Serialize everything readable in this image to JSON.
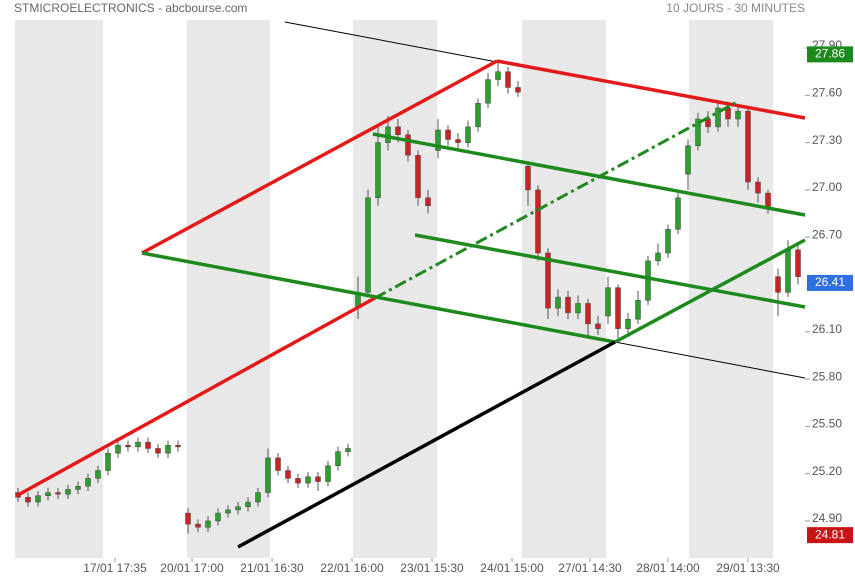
{
  "chart_data": {
    "type": "candlestick",
    "title": "STMICROELECTRONICS - abcbourse.com",
    "subtitle": "10 JOURS - 30 MINUTES",
    "up_color": "#2ca02c",
    "down_color": "#cc2222",
    "x": [
      0,
      1,
      2,
      3,
      4,
      5,
      6,
      7,
      8,
      9,
      10,
      11,
      12,
      13,
      14,
      15,
      16,
      17,
      18,
      19,
      20,
      21,
      22,
      23,
      24,
      25,
      26,
      27,
      28,
      29,
      30,
      31,
      32,
      33,
      34,
      35,
      36,
      37,
      38,
      39,
      40,
      41,
      42,
      43,
      44,
      45,
      46,
      47,
      48,
      49,
      50,
      51,
      52,
      53,
      54,
      55,
      56,
      57,
      58,
      59,
      60,
      61,
      62,
      63,
      64,
      65,
      66,
      67,
      68,
      69,
      70,
      71,
      72,
      73,
      74,
      75,
      76,
      77,
      78
    ],
    "ohlc": [
      [
        25.08,
        25.11,
        25.02,
        25.05
      ],
      [
        25.05,
        25.08,
        24.99,
        25.02
      ],
      [
        25.02,
        25.09,
        24.99,
        25.06
      ],
      [
        25.06,
        25.11,
        25.03,
        25.08
      ],
      [
        25.08,
        25.11,
        25.04,
        25.07
      ],
      [
        25.07,
        25.13,
        25.04,
        25.1
      ],
      [
        25.1,
        25.15,
        25.07,
        25.12
      ],
      [
        25.12,
        25.2,
        25.09,
        25.17
      ],
      [
        25.17,
        25.25,
        25.14,
        25.22
      ],
      [
        25.22,
        25.36,
        25.19,
        25.33
      ],
      [
        25.33,
        25.41,
        25.3,
        25.38
      ],
      [
        25.38,
        25.41,
        25.34,
        25.37
      ],
      [
        25.37,
        25.43,
        25.34,
        25.4
      ],
      [
        25.4,
        25.43,
        25.33,
        25.36
      ],
      [
        25.36,
        25.39,
        25.3,
        25.33
      ],
      [
        25.33,
        25.41,
        25.3,
        25.38
      ],
      [
        25.38,
        25.41,
        25.34,
        25.37
      ],
      [
        24.95,
        24.98,
        24.82,
        24.88
      ],
      [
        24.88,
        24.91,
        24.83,
        24.86
      ],
      [
        24.86,
        24.93,
        24.83,
        24.9
      ],
      [
        24.9,
        24.98,
        24.87,
        24.95
      ],
      [
        24.95,
        25.0,
        24.92,
        24.97
      ],
      [
        24.97,
        25.02,
        24.94,
        24.99
      ],
      [
        24.99,
        25.05,
        24.96,
        25.02
      ],
      [
        25.02,
        25.11,
        24.99,
        25.08
      ],
      [
        25.08,
        25.36,
        25.05,
        25.3
      ],
      [
        25.3,
        25.33,
        25.19,
        25.22
      ],
      [
        25.22,
        25.25,
        25.14,
        25.17
      ],
      [
        25.17,
        25.2,
        25.11,
        25.14
      ],
      [
        25.14,
        25.21,
        25.11,
        25.18
      ],
      [
        25.18,
        25.21,
        25.09,
        25.15
      ],
      [
        25.15,
        25.28,
        25.12,
        25.25
      ],
      [
        25.25,
        25.37,
        25.22,
        25.34
      ],
      [
        25.34,
        25.39,
        25.31,
        25.36
      ],
      [
        26.25,
        26.45,
        26.18,
        26.35
      ],
      [
        26.35,
        27.0,
        26.32,
        26.95
      ],
      [
        26.95,
        27.4,
        26.9,
        27.3
      ],
      [
        27.3,
        27.47,
        27.25,
        27.4
      ],
      [
        27.4,
        27.45,
        27.3,
        27.35
      ],
      [
        27.35,
        27.38,
        27.18,
        27.22
      ],
      [
        27.22,
        27.25,
        26.9,
        26.95
      ],
      [
        26.95,
        27.0,
        26.85,
        26.9
      ],
      [
        27.25,
        27.45,
        27.2,
        27.38
      ],
      [
        27.38,
        27.41,
        27.28,
        27.32
      ],
      [
        27.32,
        27.36,
        27.26,
        27.3
      ],
      [
        27.3,
        27.44,
        27.27,
        27.4
      ],
      [
        27.4,
        27.58,
        27.37,
        27.55
      ],
      [
        27.55,
        27.74,
        27.52,
        27.7
      ],
      [
        27.7,
        27.82,
        27.66,
        27.75
      ],
      [
        27.75,
        27.78,
        27.61,
        27.65
      ],
      [
        27.65,
        27.69,
        27.59,
        27.62
      ],
      [
        27.15,
        27.18,
        26.9,
        27.0
      ],
      [
        27.0,
        27.03,
        26.55,
        26.6
      ],
      [
        26.6,
        26.63,
        26.18,
        26.25
      ],
      [
        26.25,
        26.37,
        26.2,
        26.32
      ],
      [
        26.32,
        26.36,
        26.18,
        26.22
      ],
      [
        26.22,
        26.33,
        26.18,
        26.28
      ],
      [
        26.28,
        26.31,
        26.06,
        26.15
      ],
      [
        26.15,
        26.2,
        26.08,
        26.12
      ],
      [
        26.2,
        26.45,
        26.15,
        26.38
      ],
      [
        26.38,
        26.4,
        26.06,
        26.12
      ],
      [
        26.12,
        26.22,
        26.08,
        26.18
      ],
      [
        26.18,
        26.36,
        26.15,
        26.3
      ],
      [
        26.3,
        26.58,
        26.27,
        26.55
      ],
      [
        26.55,
        26.66,
        26.52,
        26.6
      ],
      [
        26.6,
        26.78,
        26.57,
        26.75
      ],
      [
        26.75,
        26.98,
        26.72,
        26.95
      ],
      [
        27.1,
        27.32,
        27.0,
        27.28
      ],
      [
        27.28,
        27.49,
        27.25,
        27.45
      ],
      [
        27.45,
        27.5,
        27.36,
        27.4
      ],
      [
        27.4,
        27.56,
        27.37,
        27.52
      ],
      [
        27.52,
        27.56,
        27.4,
        27.45
      ],
      [
        27.45,
        27.54,
        27.4,
        27.5
      ],
      [
        27.5,
        27.53,
        27.0,
        27.05
      ],
      [
        27.05,
        27.08,
        26.92,
        26.98
      ],
      [
        26.98,
        27.0,
        26.85,
        26.88
      ],
      [
        26.45,
        26.5,
        26.2,
        26.35
      ],
      [
        26.35,
        26.68,
        26.32,
        26.62
      ],
      [
        26.62,
        26.65,
        26.4,
        26.45
      ]
    ],
    "xlim": [
      -0.3,
      78.7
    ],
    "xticks": [
      {
        "value": 9.7,
        "label": "17/01 17:35"
      },
      {
        "value": 17.4,
        "label": "20/01 17:00"
      },
      {
        "value": 25.4,
        "label": "21/01 16:30"
      },
      {
        "value": 33.4,
        "label": "22/01 16:00"
      },
      {
        "value": 41.4,
        "label": "23/01 15:30"
      },
      {
        "value": 49.4,
        "label": "24/01 15:00"
      },
      {
        "value": 57.2,
        "label": "27/01 14:30"
      },
      {
        "value": 65,
        "label": "28/01 14:00"
      },
      {
        "value": 73,
        "label": "29/01 13:30"
      }
    ],
    "ylim": [
      24.665,
      28.078
    ],
    "yticks": [
      {
        "value": 27.9,
        "label": "27.90"
      },
      {
        "value": 27.6,
        "label": "27.60"
      },
      {
        "value": 27.3,
        "label": "27.30"
      },
      {
        "value": 27.0,
        "label": "27.00"
      },
      {
        "value": 26.7,
        "label": "26.70"
      },
      {
        "value": 26.1,
        "label": "26.10"
      },
      {
        "value": 25.8,
        "label": "25.80"
      },
      {
        "value": 25.5,
        "label": "25.50"
      },
      {
        "value": 25.2,
        "label": "25.20"
      },
      {
        "value": 24.9,
        "label": "24.90"
      }
    ],
    "price_labels": [
      {
        "value": 27.86,
        "color": "#1e8a1e"
      },
      {
        "value": 26.41,
        "color": "#2f6fe0"
      },
      {
        "value": 24.81,
        "color": "#c81414"
      }
    ]
  }
}
